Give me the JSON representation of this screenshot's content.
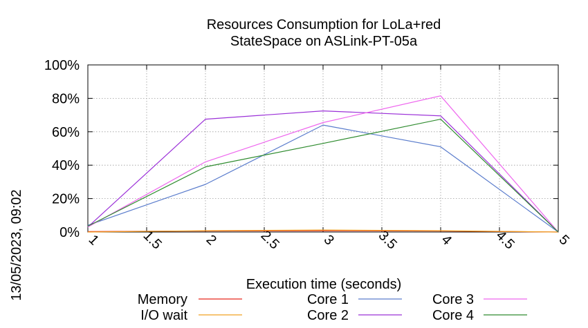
{
  "chart_data": {
    "type": "line",
    "title_lines": [
      "Resources Consumption for LoLa+red",
      "StateSpace on ASLink-PT-05a"
    ],
    "xlabel": "Execution time (seconds)",
    "ylabel": "",
    "side_label": "13/05/2023, 09:02",
    "xlim": [
      1,
      5
    ],
    "ylim": [
      0,
      100
    ],
    "x_ticks": [
      1,
      1.5,
      2,
      2.5,
      3,
      3.5,
      4,
      4.5,
      5
    ],
    "x_tick_labels": [
      "1",
      "1.5",
      "2",
      "2.5",
      "3",
      "3.5",
      "4",
      "4.5",
      "5"
    ],
    "y_ticks": [
      0,
      20,
      40,
      60,
      80,
      100
    ],
    "y_tick_labels": [
      "0%",
      "20%",
      "40%",
      "60%",
      "80%",
      "100%"
    ],
    "grid": true,
    "legend_position": "bottom",
    "x": [
      1,
      2,
      3,
      4,
      5
    ],
    "series": [
      {
        "name": "Memory",
        "color": "#e8261a",
        "values": [
          0.3,
          0.6,
          0.8,
          0.6,
          0
        ]
      },
      {
        "name": "I/O wait",
        "color": "#f0a020",
        "values": [
          0,
          0.8,
          1.2,
          0.8,
          0
        ]
      },
      {
        "name": "Core 1",
        "color": "#5a7ccc",
        "values": [
          4,
          28.5,
          64,
          51,
          0
        ]
      },
      {
        "name": "Core 2",
        "color": "#9b30d8",
        "values": [
          3,
          67.5,
          72.5,
          69.5,
          0
        ]
      },
      {
        "name": "Core 3",
        "color": "#ee66ee",
        "values": [
          3,
          42,
          65.5,
          81.5,
          0
        ]
      },
      {
        "name": "Core 4",
        "color": "#2e8b2e",
        "values": [
          3.5,
          39,
          53,
          67.5,
          0
        ]
      }
    ]
  }
}
